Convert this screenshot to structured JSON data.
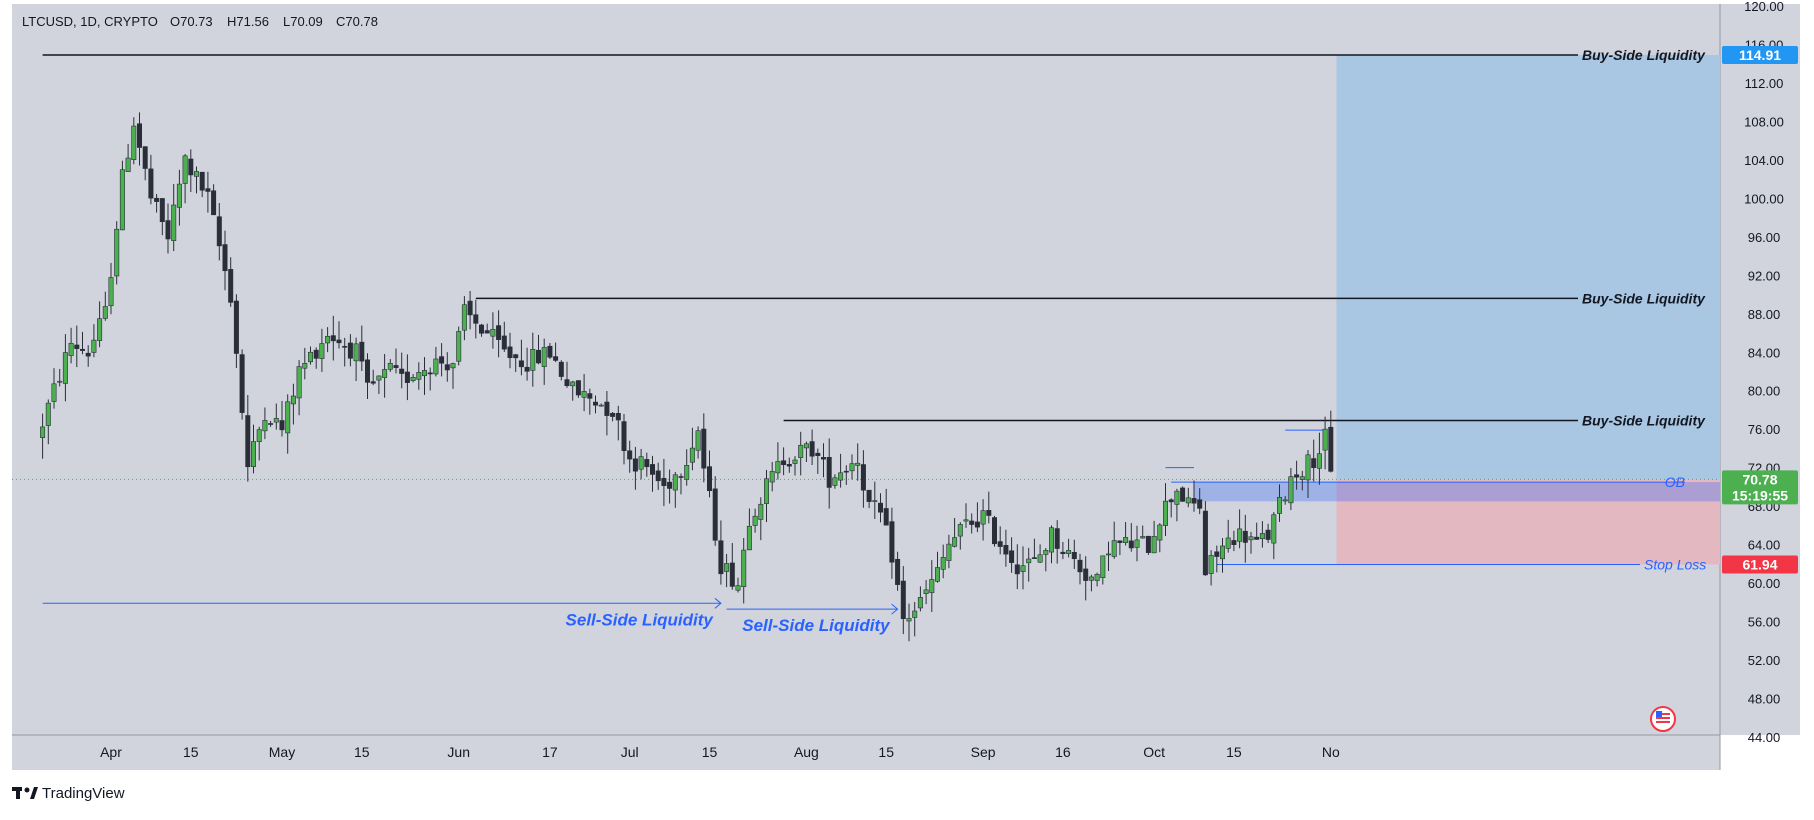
{
  "header": {
    "symbol": "LTCUSD, 1D, CRYPTO",
    "open": "O70.73",
    "high": "H71.56",
    "low": "L70.09",
    "close": "C70.78"
  },
  "brand": {
    "name": "TradingView"
  },
  "colors": {
    "background": "#d1d4dc",
    "bull": "#4caf50",
    "bear": "#2a2e39",
    "blue": "#2962ff",
    "target_zone": "#a9c6e2",
    "stop_zone": "#e3b8c0",
    "price_tag": "#4caf50",
    "target_tag": "#2196f3",
    "stop_tag": "#f23645"
  },
  "chart_data": {
    "type": "candlestick",
    "y_range": [
      44,
      120
    ],
    "y_ticks": [
      "120.00",
      "116.00",
      "112.00",
      "108.00",
      "104.00",
      "100.00",
      "96.00",
      "92.00",
      "88.00",
      "84.00",
      "80.00",
      "76.00",
      "72.00",
      "68.00",
      "64.00",
      "60.00",
      "56.00",
      "52.00",
      "48.00",
      "44.00"
    ],
    "x_ticks": [
      "Apr",
      "15",
      "May",
      "15",
      "Jun",
      "17",
      "Jul",
      "15",
      "Aug",
      "15",
      "Sep",
      "16",
      "Oct",
      "15",
      "No"
    ],
    "x_tick_days": [
      0,
      14,
      30,
      44,
      61,
      77,
      91,
      105,
      122,
      136,
      153,
      167,
      183,
      197,
      214
    ],
    "candles_note": "daily candles, day 0 = Apr 1",
    "anchors": [
      [
        -12,
        75
      ],
      [
        -6,
        85
      ],
      [
        -3,
        84
      ],
      [
        0,
        88
      ],
      [
        3,
        102
      ],
      [
        5,
        108
      ],
      [
        8,
        100
      ],
      [
        11,
        96
      ],
      [
        14,
        104
      ],
      [
        18,
        100
      ],
      [
        22,
        90
      ],
      [
        25,
        72
      ],
      [
        28,
        78
      ],
      [
        31,
        76
      ],
      [
        34,
        82
      ],
      [
        39,
        86
      ],
      [
        44,
        84
      ],
      [
        46,
        80
      ],
      [
        50,
        82
      ],
      [
        52,
        81
      ],
      [
        54,
        82
      ],
      [
        58,
        83
      ],
      [
        61,
        83
      ],
      [
        63,
        88
      ],
      [
        67,
        86
      ],
      [
        70,
        84
      ],
      [
        74,
        83
      ],
      [
        78,
        84
      ],
      [
        82,
        80
      ],
      [
        86,
        79
      ],
      [
        89,
        78
      ],
      [
        92,
        73
      ],
      [
        95,
        72
      ],
      [
        98,
        70
      ],
      [
        101,
        72
      ],
      [
        104,
        76
      ],
      [
        105,
        72
      ],
      [
        108,
        62
      ],
      [
        111,
        60
      ],
      [
        113,
        67
      ],
      [
        116,
        70
      ],
      [
        119,
        73
      ],
      [
        124,
        74
      ],
      [
        127,
        71
      ],
      [
        132,
        73
      ],
      [
        134,
        68
      ],
      [
        136,
        67
      ],
      [
        138,
        63
      ],
      [
        140,
        56
      ],
      [
        143,
        58
      ],
      [
        146,
        61
      ],
      [
        148,
        64
      ],
      [
        151,
        66
      ],
      [
        154,
        67
      ],
      [
        156,
        65
      ],
      [
        160,
        62
      ],
      [
        163,
        62
      ],
      [
        166,
        65
      ],
      [
        169,
        63
      ],
      [
        172,
        61
      ],
      [
        174,
        60
      ],
      [
        176,
        64
      ],
      [
        179,
        64
      ],
      [
        183,
        64
      ],
      [
        185,
        67
      ],
      [
        188,
        70
      ],
      [
        190,
        68
      ],
      [
        192,
        68
      ],
      [
        193,
        61
      ],
      [
        195,
        63
      ],
      [
        198,
        65
      ],
      [
        200,
        65
      ],
      [
        202,
        64
      ],
      [
        204,
        65
      ],
      [
        206,
        68
      ],
      [
        208,
        71
      ],
      [
        210,
        72
      ],
      [
        212,
        73
      ],
      [
        214,
        75
      ],
      [
        215,
        71
      ]
    ],
    "series": [
      {
        "name": "Buy-Side Liquidity",
        "kind": "level",
        "value": 114.91,
        "from_day": -12
      },
      {
        "name": "Buy-Side Liquidity",
        "kind": "level",
        "value": 89.6,
        "from_day": 64
      },
      {
        "name": "Buy-Side Liquidity",
        "kind": "level",
        "value": 76.9,
        "from_day": 118
      },
      {
        "name": "Sell-Side Liquidity",
        "kind": "arrow",
        "value": 57.9,
        "from_day": -12,
        "to_day": 107
      },
      {
        "name": "Sell-Side Liquidity",
        "kind": "arrow",
        "value": 57.3,
        "from_day": 108,
        "to_day": 138
      },
      {
        "name": "OB",
        "kind": "zone",
        "low": 68.5,
        "high": 70.5,
        "from_day": 190,
        "to_day": 228
      },
      {
        "name": "Stop Loss",
        "kind": "level",
        "value": 61.94,
        "from_day": 194,
        "to_day": 225
      }
    ],
    "small_levels": [
      {
        "value": 72.0,
        "from_day": 185,
        "to_day": 190
      },
      {
        "value": 75.9,
        "from_day": 206,
        "to_day": 213
      }
    ],
    "position": {
      "entry": 70.78,
      "target": 114.91,
      "stop": 61.94,
      "from_day": 215,
      "to_day": 225
    },
    "current_price": {
      "value": 70.78,
      "label": "70.78",
      "countdown": "15:19:55"
    },
    "target_label": "114.91",
    "stop_label": "61.94",
    "grid": false
  }
}
